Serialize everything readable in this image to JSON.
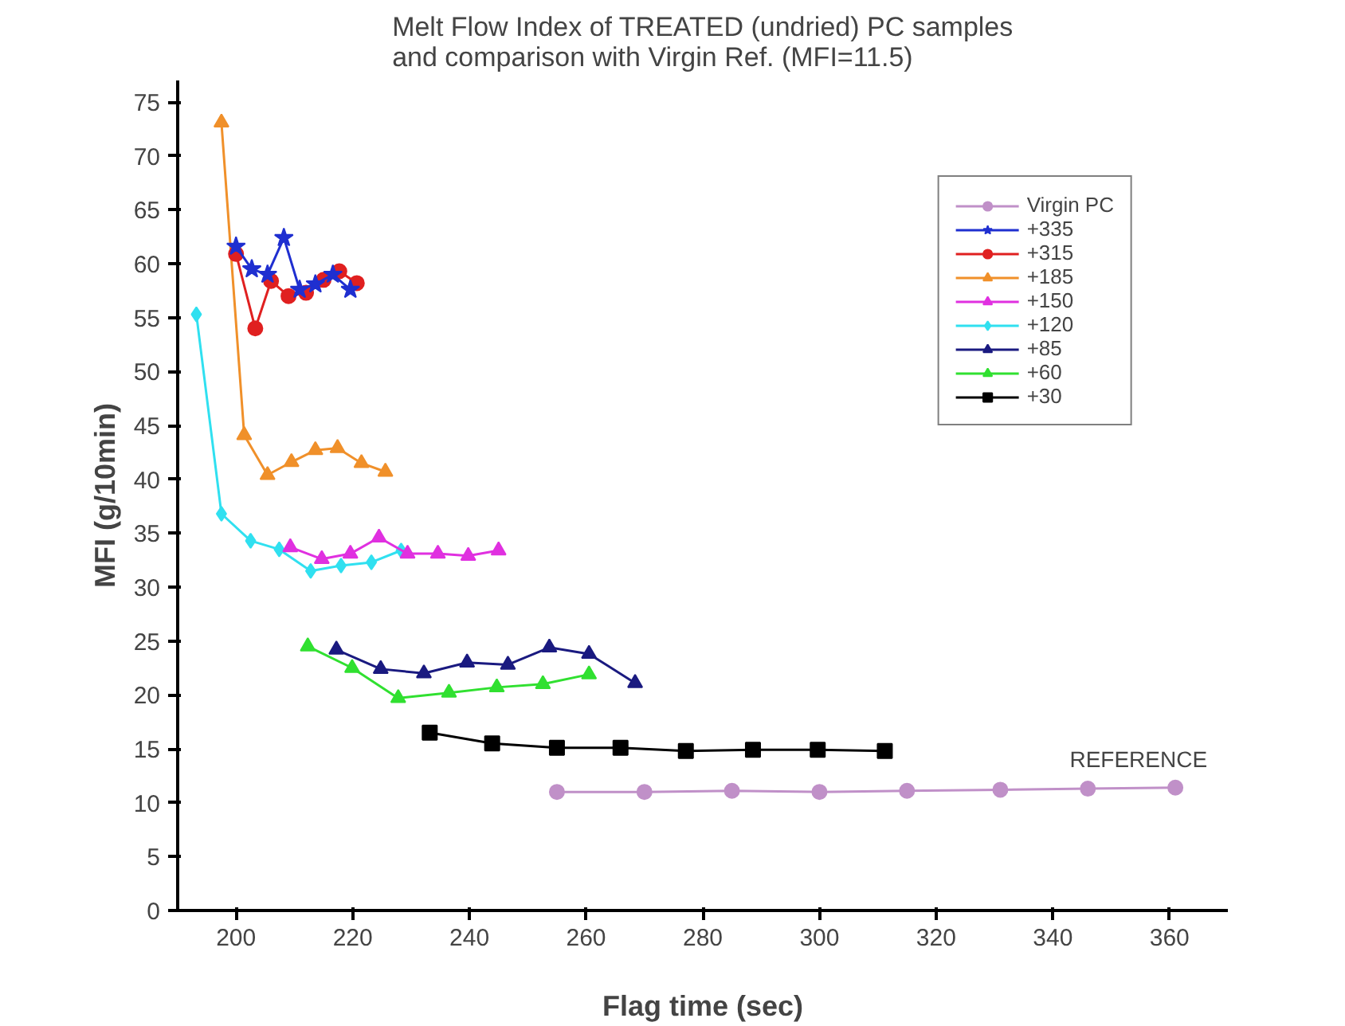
{
  "chart_data": {
    "type": "line",
    "title": "Melt Flow Index of TREATED (undried) PC samples\nand comparison with Virgin Ref. (MFI=11.5)",
    "xlabel": "Flag time (sec)",
    "ylabel": "MFI (g/10min)",
    "xlim": [
      190,
      370
    ],
    "ylim": [
      0,
      77
    ],
    "xticks": [
      200,
      220,
      240,
      260,
      280,
      300,
      320,
      340,
      360
    ],
    "yticks": [
      0,
      5,
      10,
      15,
      20,
      25,
      30,
      35,
      40,
      45,
      50,
      55,
      60,
      65,
      70,
      75
    ],
    "grid": false,
    "legend": "top right",
    "annotations": [
      {
        "text": "REFERENCE",
        "x": 361,
        "y": 11.4
      }
    ],
    "series": [
      {
        "name": "Virgin PC",
        "color": "#c090c8",
        "marker": "circle",
        "x": [
          255,
          270,
          285,
          300,
          315,
          331,
          346,
          361
        ],
        "values": [
          11.0,
          11.0,
          11.1,
          11.0,
          11.1,
          11.2,
          11.3,
          11.4
        ]
      },
      {
        "name": "+335",
        "color": "#1f2fd0",
        "marker": "star",
        "x": [
          200,
          202.7,
          205.4,
          208.2,
          210.9,
          213.6,
          216.6,
          219.6
        ],
        "values": [
          61.6,
          59.5,
          59.0,
          62.4,
          57.6,
          58.1,
          59.0,
          57.6
        ]
      },
      {
        "name": "+315",
        "color": "#e02020",
        "marker": "circle",
        "x": [
          200,
          203.3,
          206.0,
          209.0,
          212.0,
          215.0,
          217.7,
          220.7
        ],
        "values": [
          60.9,
          54.0,
          58.4,
          57.0,
          57.3,
          58.5,
          59.3,
          58.2
        ]
      },
      {
        "name": "+185",
        "color": "#f0902a",
        "marker": "triangle",
        "x": [
          197.5,
          201.4,
          205.4,
          209.5,
          213.6,
          217.4,
          221.5,
          225.6
        ],
        "values": [
          73.1,
          44.1,
          40.4,
          41.6,
          42.7,
          42.9,
          41.5,
          40.7
        ]
      },
      {
        "name": "+150",
        "color": "#e030e0",
        "marker": "triangle",
        "x": [
          209.3,
          214.7,
          219.6,
          224.5,
          229.4,
          234.6,
          239.8,
          245.0
        ],
        "values": [
          33.7,
          32.6,
          33.1,
          34.6,
          33.1,
          33.1,
          32.9,
          33.4
        ]
      },
      {
        "name": "+120",
        "color": "#30e0f0",
        "marker": "diamond",
        "x": [
          193.2,
          197.5,
          202.5,
          207.4,
          212.8,
          218.0,
          223.2,
          228.3
        ],
        "values": [
          55.3,
          36.8,
          34.3,
          33.5,
          31.5,
          32.0,
          32.3,
          33.4
        ]
      },
      {
        "name": "+85",
        "color": "#1a1a80",
        "marker": "triangle",
        "x": [
          217.2,
          224.8,
          232.2,
          239.6,
          246.6,
          253.7,
          260.5,
          268.4
        ],
        "values": [
          24.2,
          22.4,
          22.0,
          23.0,
          22.8,
          24.4,
          23.8,
          21.1
        ]
      },
      {
        "name": "+60",
        "color": "#30e030",
        "marker": "triangle",
        "x": [
          212.3,
          219.9,
          227.8,
          236.5,
          244.7,
          252.6,
          260.5
        ],
        "values": [
          24.5,
          22.5,
          19.7,
          20.2,
          20.7,
          21.0,
          21.9
        ]
      },
      {
        "name": "+30",
        "color": "#000000",
        "marker": "square",
        "x": [
          233.2,
          243.9,
          255.0,
          265.9,
          277.1,
          288.6,
          299.7,
          311.2
        ],
        "values": [
          16.5,
          15.5,
          15.1,
          15.1,
          14.8,
          14.9,
          14.9,
          14.8
        ]
      }
    ]
  }
}
